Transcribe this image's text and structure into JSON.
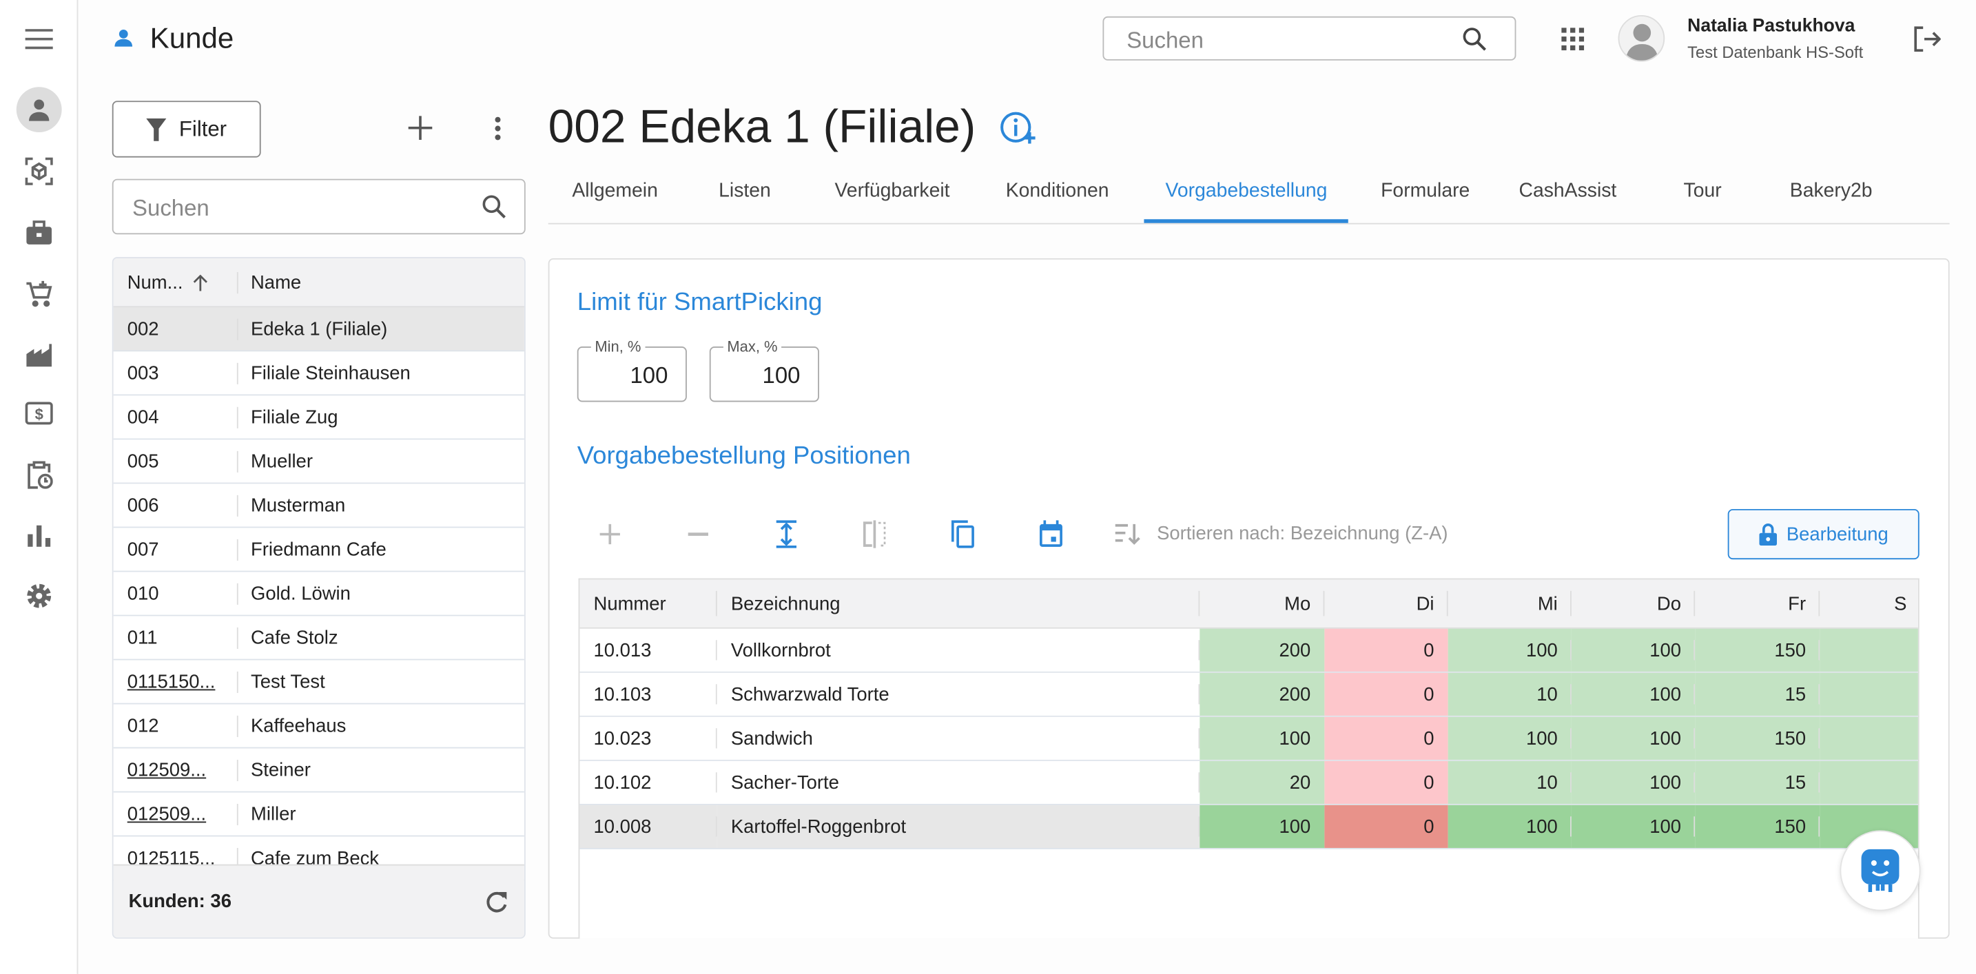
{
  "app": {
    "title": "Kunde",
    "search_placeholder": "Suchen"
  },
  "user": {
    "name": "Natalia Pastukhova",
    "database": "Test Datenbank HS-Soft"
  },
  "rail": [
    "menu-icon",
    "customer-icon",
    "article-icon",
    "briefcase-icon",
    "cart-icon",
    "factory-icon",
    "cash-icon",
    "clipboard-clock-icon",
    "chart-icon",
    "gear-icon"
  ],
  "left": {
    "filter_label": "Filter",
    "search_placeholder": "Suchen",
    "columns": [
      "Num...",
      "Name"
    ],
    "rows": [
      {
        "num": "002",
        "name": "Edeka 1 (Filiale)",
        "selected": true
      },
      {
        "num": "003",
        "name": "Filiale Steinhausen"
      },
      {
        "num": "004",
        "name": "Filiale Zug"
      },
      {
        "num": "005",
        "name": "Mueller"
      },
      {
        "num": "006",
        "name": "Musterman"
      },
      {
        "num": "007",
        "name": "Friedmann Cafe"
      },
      {
        "num": "010",
        "name": "Gold. Löwin"
      },
      {
        "num": "011",
        "name": "Cafe Stolz"
      },
      {
        "num": "0115150...",
        "name": "Test Test",
        "link": true
      },
      {
        "num": "012",
        "name": "Kaffeehaus"
      },
      {
        "num": "012509...",
        "name": "Steiner",
        "link": true
      },
      {
        "num": "012509...",
        "name": "Miller",
        "link": true
      },
      {
        "num": "0125115...",
        "name": "Cafe zum Beck"
      }
    ],
    "footer": "Kunden: 36"
  },
  "main": {
    "title": "002 Edeka 1 (Filiale)",
    "tabs": [
      "Allgemein",
      "Listen",
      "Verfügbarkeit",
      "Konditionen",
      "Vorgabebestellung",
      "Formulare",
      "CashAssist",
      "Tour",
      "Bakery2b"
    ],
    "active_tab": "Vorgabebestellung",
    "limit_title": "Limit für SmartPicking",
    "min_label": "Min, %",
    "min_value": "100",
    "max_label": "Max, %",
    "max_value": "100",
    "positions_title": "Vorgabebestellung Positionen",
    "sort_label": "Sortieren nach: Bezeichnung (Z-A)",
    "edit_label": "Bearbeitung",
    "grid": {
      "columns": [
        "Nummer",
        "Bezeichnung",
        "Mo",
        "Di",
        "Mi",
        "Do",
        "Fr",
        "S"
      ],
      "rows": [
        {
          "nummer": "10.013",
          "bezeichnung": "Vollkornbrot",
          "values": [
            "200",
            "0",
            "100",
            "100",
            "150"
          ]
        },
        {
          "nummer": "10.103",
          "bezeichnung": "Schwarzwald Torte",
          "values": [
            "200",
            "0",
            "10",
            "100",
            "15"
          ]
        },
        {
          "nummer": "10.023",
          "bezeichnung": "Sandwich",
          "values": [
            "100",
            "0",
            "100",
            "100",
            "150"
          ]
        },
        {
          "nummer": "10.102",
          "bezeichnung": "Sacher-Torte",
          "values": [
            "20",
            "0",
            "10",
            "100",
            "15"
          ]
        },
        {
          "nummer": "10.008",
          "bezeichnung": "Kartoffel-Roggenbrot",
          "values": [
            "100",
            "0",
            "100",
            "100",
            "150"
          ],
          "selected": true
        }
      ]
    }
  },
  "colors": {
    "accent": "#2b87d9",
    "green": "#c3e3c3",
    "pink": "#fdc6cb",
    "green_selected": "#9ad39a",
    "red_selected": "#e8928a"
  }
}
